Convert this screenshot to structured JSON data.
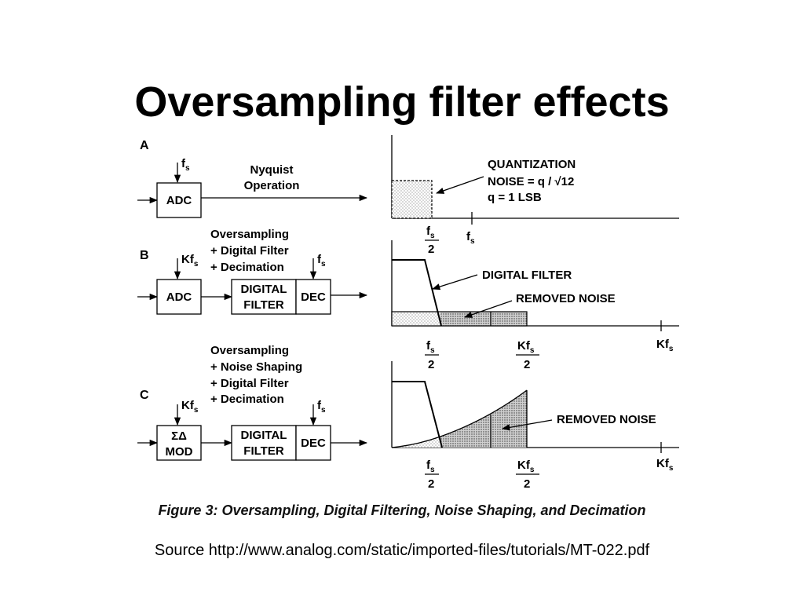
{
  "title": "Oversampling filter effects",
  "source": "Source http://www.analog.com/static/imported-files/tutorials/MT-022.pdf",
  "figure": {
    "caption": "Figure 3: Oversampling, Digital Filtering, Noise Shaping, and Decimation",
    "symbols": {
      "f": "f",
      "Kf": "Kf",
      "s": "s",
      "two": "2"
    },
    "panel_a": {
      "letter": "A",
      "adc": "ADC",
      "operation_line1": "Nyquist",
      "operation_line2": "Operation",
      "noise_line1": "QUANTIZATION",
      "noise_line2": "NOISE = q / √12",
      "noise_line3": "q = 1 LSB"
    },
    "panel_b": {
      "letter": "B",
      "desc_line1": "Oversampling",
      "desc_line2": "+ Digital Filter",
      "desc_line3": "+ Decimation",
      "adc": "ADC",
      "filter_line1": "DIGITAL",
      "filter_line2": "FILTER",
      "dec": "DEC",
      "digital_filter_label": "DIGITAL FILTER",
      "removed_noise_label": "REMOVED NOISE"
    },
    "panel_c": {
      "letter": "C",
      "desc_line1": "Oversampling",
      "desc_line2": "+ Noise Shaping",
      "desc_line3": "+ Digital Filter",
      "desc_line4": "+ Decimation",
      "mod_line1": "ΣΔ",
      "mod_line2": "MOD",
      "filter_line1": "DIGITAL",
      "filter_line2": "FILTER",
      "dec": "DEC",
      "removed_noise_label": "REMOVED NOISE"
    }
  }
}
